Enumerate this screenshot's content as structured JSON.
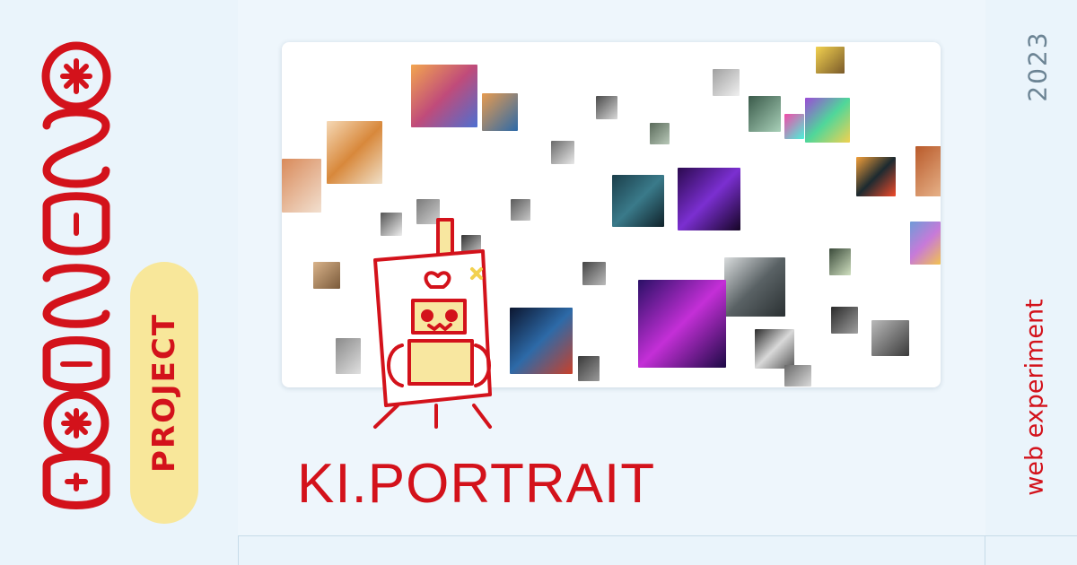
{
  "brand": {
    "wordmark_icon": "curly-wordmark-icon",
    "badge_label": "PROJECT"
  },
  "hero": {
    "title": "KI.PORTRAIT",
    "gallery_icon": "portrait-mosaic",
    "mascot_icon": "robot-painter-easel-icon"
  },
  "meta": {
    "year": "2023",
    "subtitle": "web experiment"
  },
  "colors": {
    "accent": "#d3121b",
    "background": "#eaf4fb",
    "badge": "#f8e79a",
    "muted": "#6c8494"
  }
}
